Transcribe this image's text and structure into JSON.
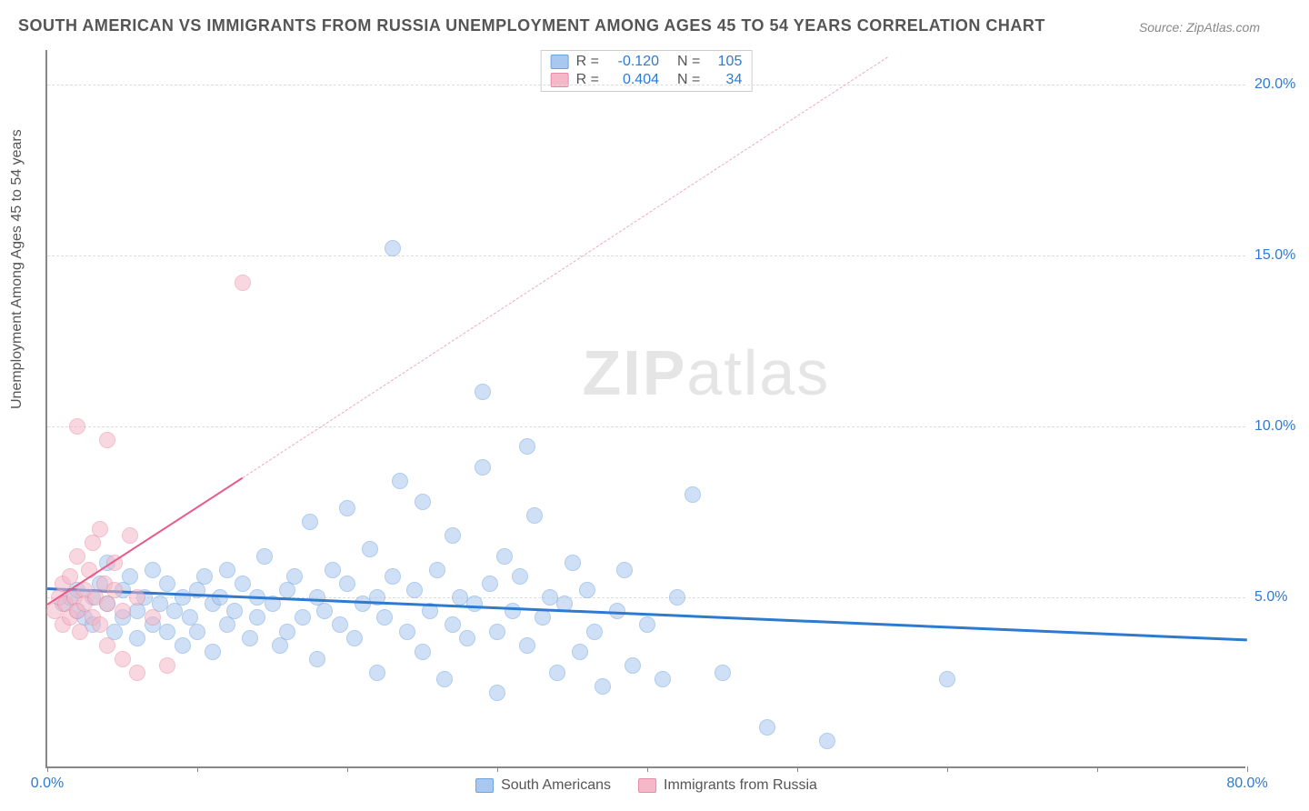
{
  "title": "SOUTH AMERICAN VS IMMIGRANTS FROM RUSSIA UNEMPLOYMENT AMONG AGES 45 TO 54 YEARS CORRELATION CHART",
  "source": "Source: ZipAtlas.com",
  "ylabel": "Unemployment Among Ages 45 to 54 years",
  "watermark_a": "ZIP",
  "watermark_b": "atlas",
  "chart": {
    "type": "scatter",
    "xlim": [
      0,
      80
    ],
    "ylim": [
      0,
      21
    ],
    "x_ticks": [
      0,
      10,
      20,
      30,
      40,
      50,
      60,
      70,
      80
    ],
    "x_tick_labels": {
      "0": "0.0%",
      "80": "80.0%"
    },
    "y_ticks": [
      5,
      10,
      15,
      20
    ],
    "y_tick_labels": {
      "5": "5.0%",
      "10": "10.0%",
      "15": "15.0%",
      "20": "20.0%"
    },
    "background_color": "#ffffff",
    "grid_color": "#dddddd",
    "grid_dash": true,
    "marker_radius": 9,
    "marker_opacity": 0.55,
    "series": [
      {
        "name": "South Americans",
        "color_fill": "#a8c8ef",
        "color_stroke": "#6fa3dd",
        "r_label": "R =",
        "r_value": "-0.120",
        "n_label": "N =",
        "n_value": "105",
        "trend": {
          "x1": 0,
          "y1": 5.3,
          "x2": 80,
          "y2": 3.8,
          "color": "#2e7ad1",
          "width": 3,
          "dash": false
        },
        "points": [
          [
            1,
            4.8
          ],
          [
            1.5,
            5.0
          ],
          [
            2,
            4.6
          ],
          [
            2,
            5.2
          ],
          [
            2.5,
            4.4
          ],
          [
            3,
            5.0
          ],
          [
            3,
            4.2
          ],
          [
            3.5,
            5.4
          ],
          [
            4,
            4.8
          ],
          [
            4,
            6.0
          ],
          [
            4.5,
            4.0
          ],
          [
            5,
            5.2
          ],
          [
            5,
            4.4
          ],
          [
            5.5,
            5.6
          ],
          [
            6,
            4.6
          ],
          [
            6,
            3.8
          ],
          [
            6.5,
            5.0
          ],
          [
            7,
            4.2
          ],
          [
            7,
            5.8
          ],
          [
            7.5,
            4.8
          ],
          [
            8,
            4.0
          ],
          [
            8,
            5.4
          ],
          [
            8.5,
            4.6
          ],
          [
            9,
            5.0
          ],
          [
            9,
            3.6
          ],
          [
            9.5,
            4.4
          ],
          [
            10,
            5.2
          ],
          [
            10,
            4.0
          ],
          [
            10.5,
            5.6
          ],
          [
            11,
            4.8
          ],
          [
            11,
            3.4
          ],
          [
            11.5,
            5.0
          ],
          [
            12,
            4.2
          ],
          [
            12,
            5.8
          ],
          [
            12.5,
            4.6
          ],
          [
            13,
            5.4
          ],
          [
            13.5,
            3.8
          ],
          [
            14,
            5.0
          ],
          [
            14,
            4.4
          ],
          [
            14.5,
            6.2
          ],
          [
            15,
            4.8
          ],
          [
            15.5,
            3.6
          ],
          [
            16,
            5.2
          ],
          [
            16,
            4.0
          ],
          [
            16.5,
            5.6
          ],
          [
            17,
            4.4
          ],
          [
            17.5,
            7.2
          ],
          [
            18,
            5.0
          ],
          [
            18,
            3.2
          ],
          [
            18.5,
            4.6
          ],
          [
            19,
            5.8
          ],
          [
            19.5,
            4.2
          ],
          [
            20,
            5.4
          ],
          [
            20,
            7.6
          ],
          [
            20.5,
            3.8
          ],
          [
            21,
            4.8
          ],
          [
            21.5,
            6.4
          ],
          [
            22,
            5.0
          ],
          [
            22,
            2.8
          ],
          [
            22.5,
            4.4
          ],
          [
            23,
            5.6
          ],
          [
            23.5,
            8.4
          ],
          [
            24,
            4.0
          ],
          [
            24.5,
            5.2
          ],
          [
            25,
            3.4
          ],
          [
            25,
            7.8
          ],
          [
            25.5,
            4.6
          ],
          [
            26,
            5.8
          ],
          [
            26.5,
            2.6
          ],
          [
            27,
            4.2
          ],
          [
            27,
            6.8
          ],
          [
            27.5,
            5.0
          ],
          [
            28,
            3.8
          ],
          [
            28.5,
            4.8
          ],
          [
            29,
            8.8
          ],
          [
            29.5,
            5.4
          ],
          [
            30,
            4.0
          ],
          [
            30,
            2.2
          ],
          [
            30.5,
            6.2
          ],
          [
            31,
            4.6
          ],
          [
            31.5,
            5.6
          ],
          [
            32,
            3.6
          ],
          [
            32.5,
            7.4
          ],
          [
            33,
            4.4
          ],
          [
            33.5,
            5.0
          ],
          [
            34,
            2.8
          ],
          [
            34.5,
            4.8
          ],
          [
            35,
            6.0
          ],
          [
            35.5,
            3.4
          ],
          [
            36,
            5.2
          ],
          [
            36.5,
            4.0
          ],
          [
            37,
            2.4
          ],
          [
            38,
            4.6
          ],
          [
            38.5,
            5.8
          ],
          [
            39,
            3.0
          ],
          [
            40,
            4.2
          ],
          [
            41,
            2.6
          ],
          [
            42,
            5.0
          ],
          [
            43,
            8.0
          ],
          [
            45,
            2.8
          ],
          [
            48,
            1.2
          ],
          [
            52,
            0.8
          ],
          [
            60,
            2.6
          ],
          [
            23,
            15.2
          ],
          [
            29,
            11.0
          ],
          [
            32,
            9.4
          ]
        ]
      },
      {
        "name": "Immigrants from Russia",
        "color_fill": "#f5b8c8",
        "color_stroke": "#e88ba5",
        "r_label": "R =",
        "r_value": "0.404",
        "n_label": "N =",
        "n_value": "34",
        "trend": {
          "x1": 0,
          "y1": 4.8,
          "x2": 13,
          "y2": 8.5,
          "color": "#e85a8a",
          "width": 2.5,
          "dash": false
        },
        "trend_ext": {
          "x1": 13,
          "y1": 8.5,
          "x2": 56,
          "y2": 20.8,
          "color": "#f0a8bc",
          "width": 1.5,
          "dash": true
        },
        "points": [
          [
            0.5,
            4.6
          ],
          [
            0.8,
            5.0
          ],
          [
            1,
            4.2
          ],
          [
            1,
            5.4
          ],
          [
            1.2,
            4.8
          ],
          [
            1.5,
            4.4
          ],
          [
            1.5,
            5.6
          ],
          [
            1.8,
            5.0
          ],
          [
            2,
            4.6
          ],
          [
            2,
            6.2
          ],
          [
            2.2,
            4.0
          ],
          [
            2.5,
            5.2
          ],
          [
            2.5,
            4.8
          ],
          [
            2.8,
            5.8
          ],
          [
            3,
            4.4
          ],
          [
            3,
            6.6
          ],
          [
            3.2,
            5.0
          ],
          [
            3.5,
            4.2
          ],
          [
            3.5,
            7.0
          ],
          [
            3.8,
            5.4
          ],
          [
            4,
            4.8
          ],
          [
            4,
            3.6
          ],
          [
            4.5,
            6.0
          ],
          [
            4.5,
            5.2
          ],
          [
            5,
            4.6
          ],
          [
            5,
            3.2
          ],
          [
            5.5,
            6.8
          ],
          [
            6,
            5.0
          ],
          [
            6,
            2.8
          ],
          [
            7,
            4.4
          ],
          [
            8,
            3.0
          ],
          [
            4,
            9.6
          ],
          [
            2,
            10.0
          ],
          [
            13,
            14.2
          ]
        ]
      }
    ]
  }
}
